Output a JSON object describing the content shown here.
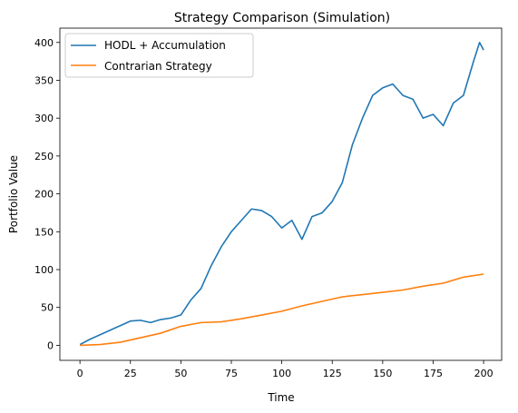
{
  "chart_data": {
    "type": "line",
    "title": "Strategy Comparison (Simulation)",
    "xlabel": "Time",
    "ylabel": "Portfolio Value",
    "xlim": [
      -9.95,
      208.95
    ],
    "ylim": [
      -19.9,
      418.9
    ],
    "xticks": [
      0,
      25,
      50,
      75,
      100,
      125,
      150,
      175,
      200
    ],
    "yticks": [
      0,
      50,
      100,
      150,
      200,
      250,
      300,
      350,
      400
    ],
    "grid": false,
    "legend_position": "upper left",
    "series": [
      {
        "name": "HODL + Accumulation",
        "color": "#1f77b4",
        "x": [
          0,
          5,
          10,
          15,
          20,
          25,
          30,
          35,
          40,
          45,
          50,
          55,
          60,
          65,
          70,
          75,
          80,
          85,
          90,
          95,
          100,
          105,
          110,
          115,
          120,
          125,
          130,
          135,
          140,
          145,
          150,
          155,
          160,
          165,
          170,
          175,
          180,
          185,
          190,
          195,
          198,
          200
        ],
        "y": [
          1,
          8,
          14,
          20,
          26,
          32,
          33,
          30,
          34,
          36,
          40,
          60,
          75,
          105,
          130,
          150,
          165,
          180,
          178,
          170,
          155,
          165,
          140,
          170,
          175,
          190,
          215,
          265,
          300,
          330,
          340,
          345,
          330,
          325,
          300,
          305,
          290,
          320,
          330,
          375,
          400,
          390
        ]
      },
      {
        "name": "Contrarian Strategy",
        "color": "#ff7f0e",
        "x": [
          0,
          10,
          20,
          30,
          40,
          50,
          60,
          70,
          80,
          90,
          100,
          110,
          120,
          130,
          140,
          150,
          160,
          170,
          180,
          190,
          200
        ],
        "y": [
          0,
          1,
          4,
          10,
          16,
          25,
          30,
          31,
          35,
          40,
          45,
          52,
          58,
          64,
          67,
          70,
          73,
          78,
          82,
          90,
          94
        ]
      }
    ]
  }
}
